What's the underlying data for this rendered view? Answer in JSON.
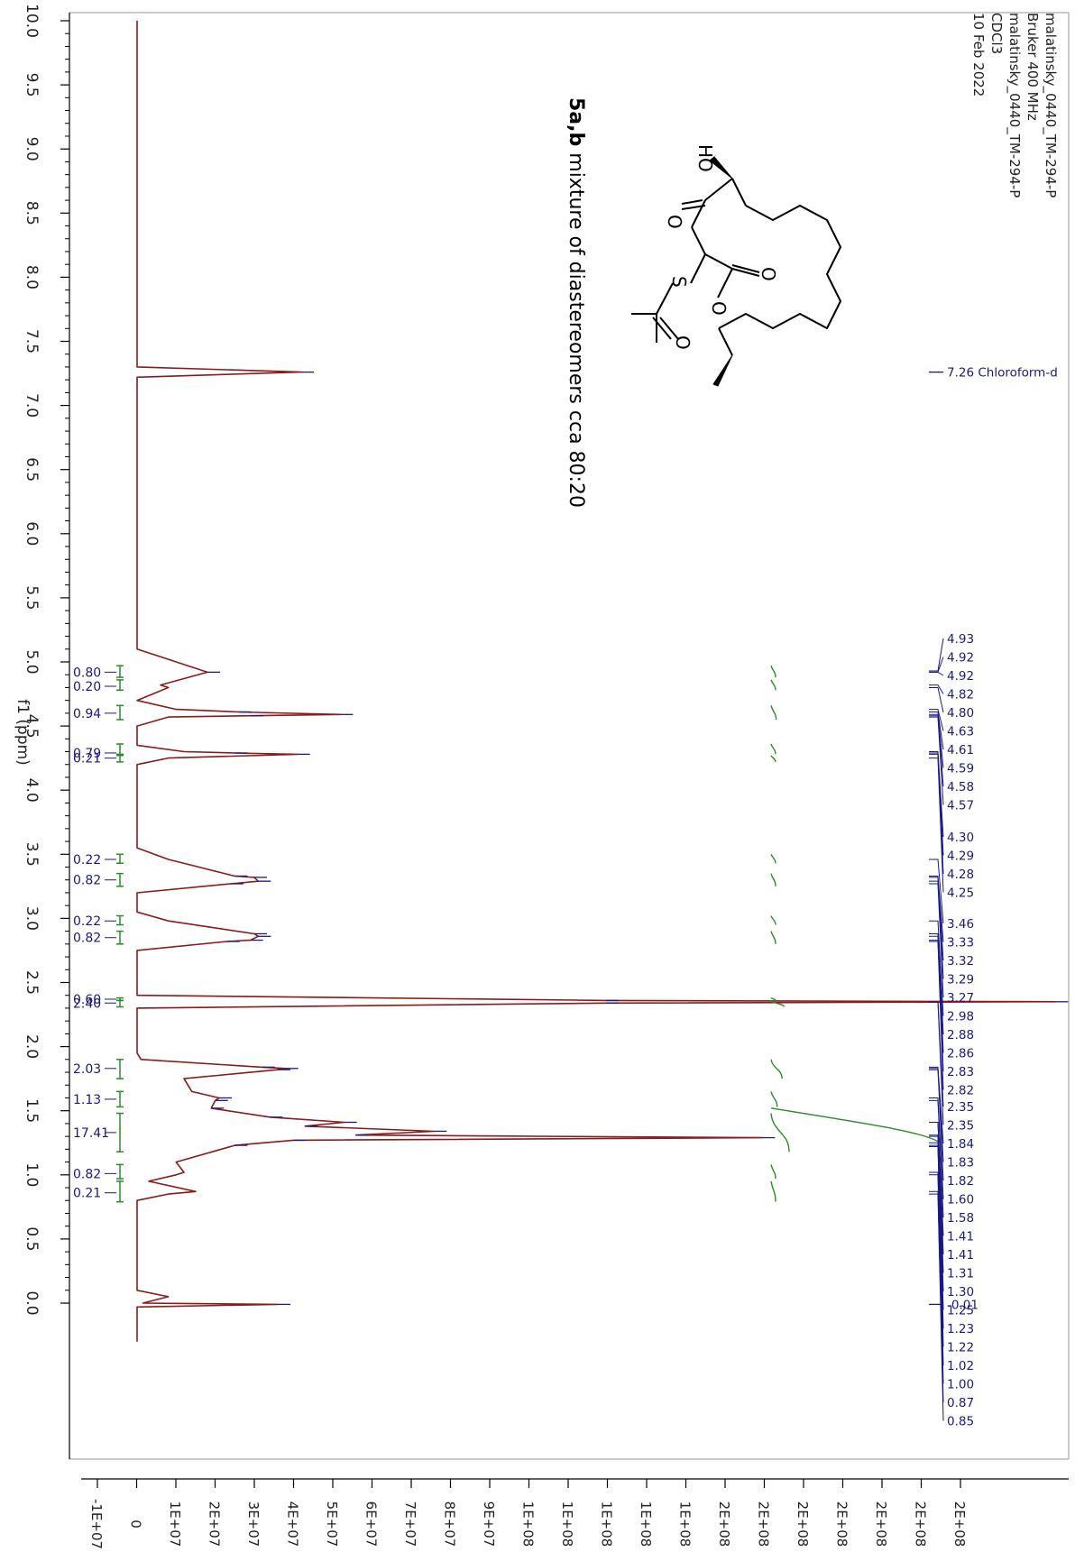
{
  "header_lines": [
    "malatinsky_0440_TM-294-P",
    "Bruker 400 MHz",
    "malatinsky_0440_TM-294-P",
    "CDCl3",
    "10 Feb 2022"
  ],
  "compound": {
    "bold": "5a,b",
    "rest": " mixture of diastereomers cca 80:20",
    "atoms": {
      "hydroxyl": "HO",
      "sulfur": "S",
      "oxygen": "O"
    }
  },
  "solvent_label": "7.26 Chloroform-d",
  "chart_data": {
    "type": "line",
    "xlabel": "f1 (ppm)",
    "xlim": [
      10.0,
      -0.3
    ],
    "x_ticks": [
      "10.0",
      "9.5",
      "9.0",
      "8.5",
      "8.0",
      "7.5",
      "7.0",
      "6.5",
      "6.0",
      "5.5",
      "5.0",
      "4.5",
      "4.0",
      "3.5",
      "3.0",
      "2.5",
      "2.0",
      "1.5",
      "1.0",
      "0.5",
      "0.0"
    ],
    "y_ticks": [
      "-1E+07",
      "0",
      "1E+07",
      "2E+07",
      "3E+07",
      "4E+07",
      "5E+07",
      "6E+07",
      "7E+07",
      "8E+07",
      "9E+07",
      "1E+08",
      "1E+08",
      "1E+08",
      "1E+08",
      "1E+08",
      "2E+08",
      "2E+08",
      "2E+08",
      "2E+08",
      "2E+08",
      "2E+08",
      "2E+08"
    ],
    "ylim": [
      -15000000.0,
      220000000.0
    ],
    "spectrum_color": "#8b1a1a",
    "integral_color": "#2a8a2a",
    "label_color": "#1a1a80",
    "spectrum": [
      [
        10.0,
        0
      ],
      [
        7.3,
        0
      ],
      [
        7.26,
        42000000.0
      ],
      [
        7.22,
        0
      ],
      [
        6.8,
        0
      ],
      [
        5.1,
        0
      ],
      [
        4.92,
        18000000.0
      ],
      [
        4.82,
        6000000.0
      ],
      [
        4.8,
        8000000.0
      ],
      [
        4.7,
        0
      ],
      [
        4.63,
        10000000.0
      ],
      [
        4.61,
        26000000.0
      ],
      [
        4.59,
        52000000.0
      ],
      [
        4.58,
        29000000.0
      ],
      [
        4.57,
        8000000.0
      ],
      [
        4.5,
        0
      ],
      [
        4.35,
        0
      ],
      [
        4.3,
        12000000.0
      ],
      [
        4.29,
        25000000.0
      ],
      [
        4.28,
        41000000.0
      ],
      [
        4.25,
        8000000.0
      ],
      [
        4.2,
        0
      ],
      [
        3.55,
        0
      ],
      [
        3.46,
        8000000.0
      ],
      [
        3.33,
        25000000.0
      ],
      [
        3.32,
        30000000.0
      ],
      [
        3.29,
        31000000.0
      ],
      [
        3.27,
        24000000.0
      ],
      [
        3.2,
        0
      ],
      [
        3.05,
        0
      ],
      [
        2.98,
        8000000.0
      ],
      [
        2.88,
        30000000.0
      ],
      [
        2.86,
        31000000.0
      ],
      [
        2.83,
        29000000.0
      ],
      [
        2.82,
        23000000.0
      ],
      [
        2.75,
        0
      ],
      [
        2.4,
        0
      ],
      [
        2.36,
        120000000.0
      ],
      [
        2.35,
        235000000.0
      ],
      [
        2.34,
        120000000.0
      ],
      [
        2.3,
        0
      ],
      [
        1.95,
        0
      ],
      [
        1.9,
        1000000.0
      ],
      [
        1.84,
        32000000.0
      ],
      [
        1.83,
        38000000.0
      ],
      [
        1.82,
        36000000.0
      ],
      [
        1.75,
        12000000.0
      ],
      [
        1.65,
        14000000.0
      ],
      [
        1.6,
        21000000.0
      ],
      [
        1.58,
        20000000.0
      ],
      [
        1.52,
        19000000.0
      ],
      [
        1.45,
        34000000.0
      ],
      [
        1.41,
        53000000.0
      ],
      [
        1.38,
        43000000.0
      ],
      [
        1.34,
        76000000.0
      ],
      [
        1.31,
        56000000.0
      ],
      [
        1.29,
        160000000.0
      ],
      [
        1.27,
        40000000.0
      ],
      [
        1.23,
        25000000.0
      ],
      [
        1.1,
        10000000.0
      ],
      [
        1.02,
        12000000.0
      ],
      [
        1.0,
        10000000.0
      ],
      [
        0.95,
        3000000.0
      ],
      [
        0.87,
        15000000.0
      ],
      [
        0.85,
        8000000.0
      ],
      [
        0.8,
        0
      ],
      [
        0.1,
        0
      ],
      [
        0.05,
        8000000.0
      ],
      [
        0.0,
        1500000.0
      ],
      [
        -0.01,
        36000000.0
      ],
      [
        -0.03,
        0
      ],
      [
        -0.3,
        0
      ]
    ],
    "peak_labels": [
      "4.93",
      "4.92",
      "4.92",
      "4.82",
      "4.80",
      "4.63",
      "4.61",
      "4.59",
      "4.58",
      "4.57",
      "4.30",
      "4.29",
      "4.28",
      "4.25",
      "3.46",
      "3.33",
      "3.32",
      "3.29",
      "3.27",
      "2.98",
      "2.88",
      "2.86",
      "2.83",
      "2.82",
      "2.35",
      "2.35",
      "1.84",
      "1.83",
      "1.82",
      "1.60",
      "1.58",
      "1.41",
      "1.41",
      "1.31",
      "1.30",
      "1.25",
      "1.23",
      "1.22",
      "1.02",
      "1.00",
      "0.87",
      "0.85"
    ],
    "lone_peak_label": "-0.01",
    "integrals": [
      {
        "label": "0.80",
        "from": 4.97,
        "to": 4.88,
        "center": 4.92
      },
      {
        "label": "0.20",
        "from": 4.86,
        "to": 4.78,
        "center": 4.81
      },
      {
        "label": "0.94",
        "from": 4.66,
        "to": 4.55,
        "center": 4.6
      },
      {
        "label": "0.79",
        "from": 4.36,
        "to": 4.28,
        "center": 4.29
      },
      {
        "label": "0.21",
        "from": 4.27,
        "to": 4.22,
        "center": 4.25
      },
      {
        "label": "0.22",
        "from": 3.5,
        "to": 3.43,
        "center": 3.46
      },
      {
        "label": "0.82",
        "from": 3.35,
        "to": 3.25,
        "center": 3.3
      },
      {
        "label": "0.22",
        "from": 3.02,
        "to": 2.95,
        "center": 2.98
      },
      {
        "label": "0.82",
        "from": 2.9,
        "to": 2.8,
        "center": 2.85
      },
      {
        "label": "0.60",
        "from": 2.38,
        "to": 2.36,
        "center": 2.37
      },
      {
        "label": "2.40",
        "from": 2.36,
        "to": 2.31,
        "center": 2.34
      },
      {
        "label": "2.03",
        "from": 1.9,
        "to": 1.75,
        "center": 1.83
      },
      {
        "label": "1.13",
        "from": 1.65,
        "to": 1.53,
        "center": 1.59
      },
      {
        "label": "17.41",
        "from": 1.48,
        "to": 1.18,
        "center": 1.33
      },
      {
        "label": "0.82",
        "from": 1.08,
        "to": 0.97,
        "center": 1.01
      },
      {
        "label": "0.21",
        "from": 0.95,
        "to": 0.79,
        "center": 0.86
      }
    ]
  }
}
